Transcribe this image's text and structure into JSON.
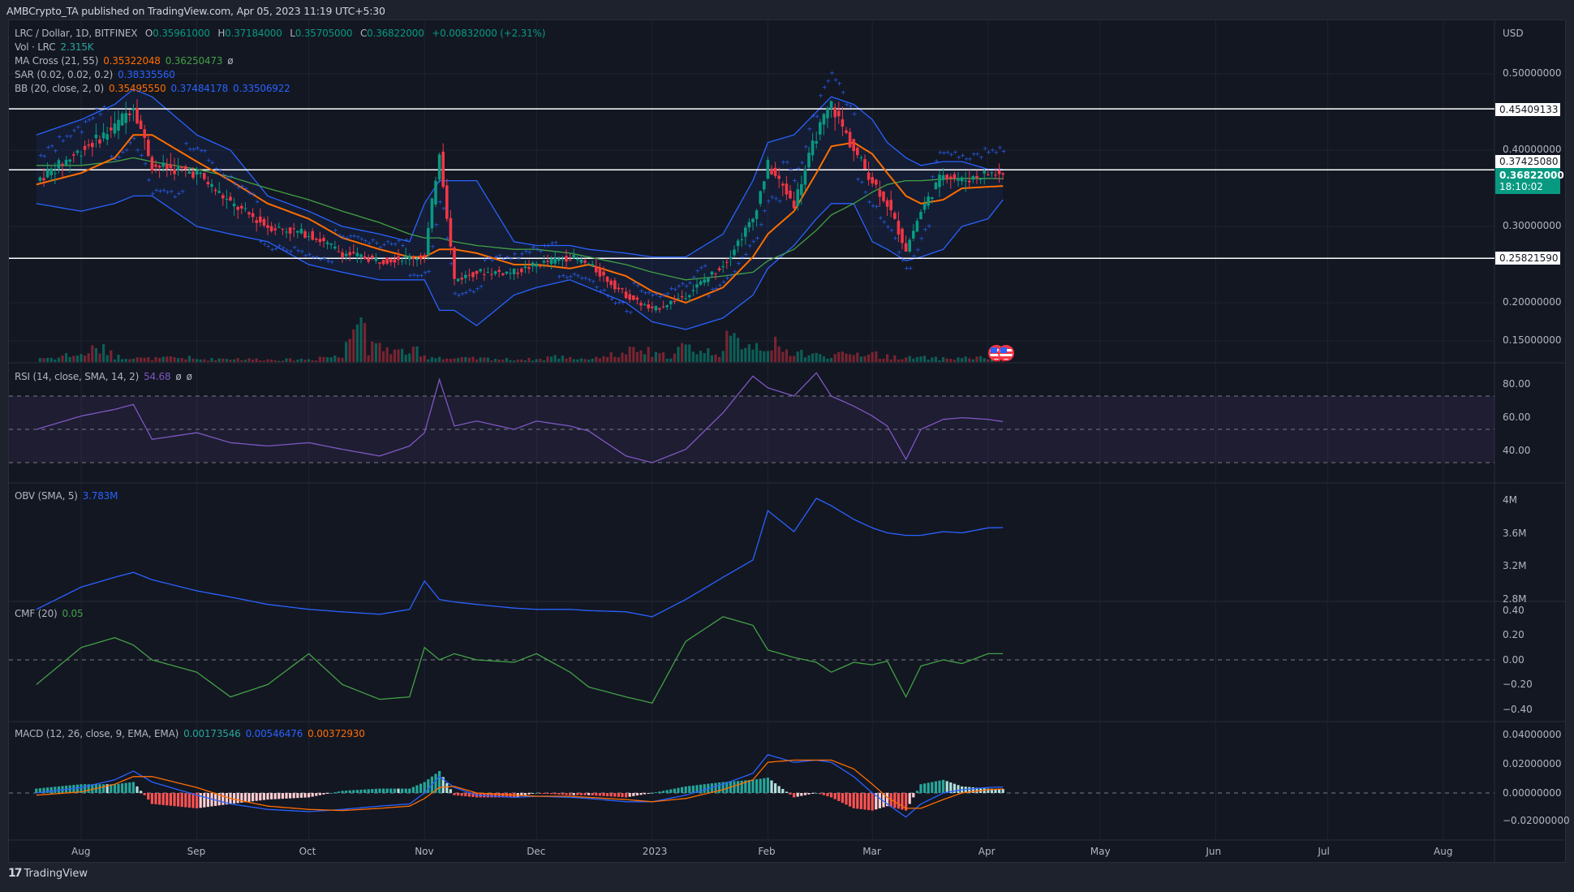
{
  "header": {
    "publish_line": "AMBCrypto_TA published on TradingView.com, Apr 05, 2023 11:19 UTC+5:30"
  },
  "legend": {
    "symbol": "LRC / Dollar, 1D, BITFINEX",
    "o_label": "O",
    "o": "0.35961000",
    "h_label": "H",
    "h": "0.37184000",
    "l_label": "L",
    "l": "0.35705000",
    "c_label": "C",
    "c": "0.36822000",
    "change": "+0.00832000 (+2.31%)",
    "vol_title": "Vol · LRC",
    "vol": "2.315K",
    "ma_title": "MA Cross (21, 55)",
    "ma_fast": "0.35322048",
    "ma_slow": "0.36250473",
    "ma_extra": "ø",
    "sar_title": "SAR (0.02, 0.02, 0.2)",
    "sar": "0.38335560",
    "bb_title": "BB (20, close, 2, 0)",
    "bb_basis": "0.35495550",
    "bb_upper": "0.37484178",
    "bb_lower": "0.33506922",
    "rsi_title": "RSI (14, close, SMA, 14, 2)",
    "rsi": "54.68",
    "rsi_extra1": "ø",
    "rsi_extra2": "ø",
    "obv_title": "OBV (SMA, 5)",
    "obv": "3.783M",
    "cmf_title": "CMF (20)",
    "cmf": "0.05",
    "macd_title": "MACD (12, 26, close, 9, EMA, EMA)",
    "macd_hist": "0.00173546",
    "macd_line": "0.00546476",
    "macd_signal": "0.00372930"
  },
  "price_axis": {
    "currency": "USD",
    "ticks": [
      "0.50000000",
      "0.40000000",
      "0.30000000",
      "0.20000000",
      "0.15000000"
    ],
    "tick_values": [
      0.5,
      0.4,
      0.3,
      0.2,
      0.15
    ],
    "horizontal_levels": [
      {
        "label": "0.45409133",
        "value": 0.45409133
      },
      {
        "label": "0.37425080",
        "value": 0.3742508
      },
      {
        "label": "0.25821590",
        "value": 0.2582159
      }
    ],
    "current_price": {
      "label": "0.36822000",
      "countdown": "18:10:02"
    }
  },
  "rsi_axis": {
    "ticks": [
      "80.00",
      "60.00",
      "40.00"
    ]
  },
  "obv_axis": {
    "ticks": [
      "4M",
      "3.6M",
      "3.2M",
      "2.8M"
    ]
  },
  "cmf_axis": {
    "ticks": [
      "0.40",
      "0.20",
      "0.00",
      "−0.20",
      "−0.40"
    ]
  },
  "macd_axis": {
    "ticks": [
      "0.04000000",
      "0.02000000",
      "0.00000000",
      "−0.02000000"
    ]
  },
  "time_axis": {
    "labels": [
      "Aug",
      "Sep",
      "Oct",
      "Nov",
      "Dec",
      "2023",
      "Feb",
      "Mar",
      "Apr",
      "May",
      "Jun",
      "Jul",
      "Aug"
    ]
  },
  "footer": {
    "brand": "TradingView",
    "logo": "17"
  },
  "colors": {
    "up": "#089981",
    "down": "#f23645",
    "bb": "#2962ff",
    "ma_fast": "#ff6d00",
    "ma_slow": "#43a047",
    "rsi": "#7e57c2",
    "obv": "#2962ff",
    "cmf": "#43a047",
    "macd": "#2962ff",
    "signal": "#ff6d00"
  },
  "chart_data": {
    "type": "line",
    "title": "LRC / Dollar, 1D, BITFINEX",
    "xlabel": "",
    "ylabel": "USD",
    "ylim": [
      0.13,
      0.52
    ],
    "grid": true,
    "x": [
      "2022-07-20",
      "2022-08-01",
      "2022-08-10",
      "2022-08-15",
      "2022-08-20",
      "2022-09-01",
      "2022-09-10",
      "2022-09-20",
      "2022-10-01",
      "2022-10-10",
      "2022-10-20",
      "2022-10-28",
      "2022-11-01",
      "2022-11-05",
      "2022-11-09",
      "2022-11-15",
      "2022-11-25",
      "2022-12-01",
      "2022-12-10",
      "2022-12-15",
      "2022-12-25",
      "2023-01-01",
      "2023-01-10",
      "2023-01-20",
      "2023-01-28",
      "2023-02-01",
      "2023-02-08",
      "2023-02-14",
      "2023-02-18",
      "2023-02-24",
      "2023-03-01",
      "2023-03-05",
      "2023-03-10",
      "2023-03-14",
      "2023-03-20",
      "2023-03-25",
      "2023-04-01",
      "2023-04-05"
    ],
    "series": [
      {
        "name": "Close",
        "values": [
          0.36,
          0.4,
          0.43,
          0.46,
          0.38,
          0.37,
          0.33,
          0.3,
          0.29,
          0.265,
          0.255,
          0.26,
          0.26,
          0.4,
          0.23,
          0.24,
          0.24,
          0.25,
          0.26,
          0.25,
          0.21,
          0.19,
          0.21,
          0.25,
          0.31,
          0.38,
          0.33,
          0.42,
          0.46,
          0.4,
          0.36,
          0.33,
          0.27,
          0.32,
          0.37,
          0.36,
          0.37,
          0.368
        ]
      },
      {
        "name": "MA21",
        "values": [
          0.355,
          0.37,
          0.39,
          0.42,
          0.42,
          0.385,
          0.36,
          0.33,
          0.31,
          0.285,
          0.27,
          0.26,
          0.26,
          0.27,
          0.27,
          0.265,
          0.25,
          0.25,
          0.245,
          0.25,
          0.235,
          0.215,
          0.2,
          0.22,
          0.26,
          0.29,
          0.32,
          0.37,
          0.405,
          0.41,
          0.395,
          0.37,
          0.34,
          0.33,
          0.335,
          0.35,
          0.352,
          0.353
        ]
      },
      {
        "name": "MA55",
        "values": [
          0.38,
          0.38,
          0.385,
          0.39,
          0.385,
          0.375,
          0.365,
          0.35,
          0.335,
          0.32,
          0.305,
          0.29,
          0.285,
          0.285,
          0.28,
          0.275,
          0.27,
          0.27,
          0.265,
          0.26,
          0.25,
          0.24,
          0.23,
          0.235,
          0.24,
          0.255,
          0.27,
          0.295,
          0.315,
          0.33,
          0.345,
          0.355,
          0.36,
          0.36,
          0.362,
          0.363,
          0.363,
          0.3625
        ]
      },
      {
        "name": "BB Upper",
        "values": [
          0.42,
          0.44,
          0.46,
          0.48,
          0.47,
          0.42,
          0.4,
          0.34,
          0.32,
          0.3,
          0.29,
          0.28,
          0.33,
          0.36,
          0.36,
          0.36,
          0.28,
          0.275,
          0.275,
          0.27,
          0.265,
          0.26,
          0.26,
          0.29,
          0.36,
          0.41,
          0.42,
          0.45,
          0.47,
          0.46,
          0.44,
          0.41,
          0.39,
          0.38,
          0.385,
          0.385,
          0.375,
          0.375
        ]
      },
      {
        "name": "BB Lower",
        "values": [
          0.33,
          0.32,
          0.33,
          0.34,
          0.34,
          0.3,
          0.29,
          0.28,
          0.25,
          0.24,
          0.23,
          0.23,
          0.23,
          0.19,
          0.19,
          0.17,
          0.21,
          0.22,
          0.23,
          0.22,
          0.2,
          0.175,
          0.165,
          0.18,
          0.21,
          0.245,
          0.275,
          0.31,
          0.33,
          0.33,
          0.28,
          0.27,
          0.255,
          0.26,
          0.27,
          0.3,
          0.31,
          0.335
        ]
      },
      {
        "name": "Volume",
        "values": [
          1.2,
          2.0,
          3.5,
          1.5,
          1.0,
          1.2,
          0.8,
          1.0,
          0.8,
          0.7,
          0.8,
          1.5,
          12,
          4,
          3,
          1.5,
          1.0,
          1.0,
          0.8,
          0.8,
          1.5,
          1.0,
          2.0,
          3.0,
          2.0,
          4.0,
          3.0,
          6.0,
          5.0,
          3.0,
          2.0,
          2.0,
          2.5,
          1.5,
          1.2,
          1.0,
          1.2,
          1.0
        ]
      },
      {
        "name": "RSI",
        "values": [
          50,
          58,
          62,
          65,
          44,
          48,
          42,
          40,
          42,
          38,
          34,
          40,
          48,
          80,
          52,
          55,
          50,
          55,
          52,
          49,
          34,
          30,
          38,
          60,
          82,
          75,
          70,
          84,
          70,
          64,
          58,
          52,
          32,
          50,
          56,
          57,
          56,
          54.68
        ]
      },
      {
        "name": "OBV (M)",
        "values": [
          3.12,
          3.3,
          3.38,
          3.42,
          3.36,
          3.27,
          3.22,
          3.16,
          3.12,
          3.1,
          3.08,
          3.12,
          3.35,
          3.2,
          3.18,
          3.16,
          3.13,
          3.12,
          3.12,
          3.11,
          3.1,
          3.06,
          3.2,
          3.38,
          3.52,
          3.92,
          3.75,
          4.02,
          3.96,
          3.85,
          3.78,
          3.74,
          3.72,
          3.72,
          3.75,
          3.74,
          3.78,
          3.783
        ]
      },
      {
        "name": "CMF",
        "values": [
          -0.2,
          0.1,
          0.18,
          0.12,
          0.0,
          -0.1,
          -0.3,
          -0.2,
          0.05,
          -0.2,
          -0.32,
          -0.3,
          0.1,
          0.0,
          0.05,
          0.0,
          -0.02,
          0.05,
          -0.1,
          -0.22,
          -0.3,
          -0.35,
          0.15,
          0.35,
          0.28,
          0.08,
          0.02,
          -0.02,
          -0.1,
          -0.02,
          -0.04,
          -0.01,
          -0.3,
          -0.05,
          0.0,
          -0.03,
          0.05,
          0.05
        ]
      },
      {
        "name": "MACD",
        "values": [
          0.0,
          0.005,
          0.012,
          0.02,
          0.01,
          -0.002,
          -0.01,
          -0.015,
          -0.017,
          -0.015,
          -0.012,
          -0.01,
          0.0,
          0.015,
          0.005,
          -0.002,
          -0.004,
          -0.003,
          -0.004,
          -0.005,
          -0.008,
          -0.008,
          -0.002,
          0.008,
          0.018,
          0.035,
          0.028,
          0.03,
          0.028,
          0.015,
          0.0,
          -0.01,
          -0.022,
          -0.01,
          0.0,
          0.003,
          0.005,
          0.0055
        ]
      },
      {
        "name": "Signal",
        "values": [
          -0.002,
          0.001,
          0.008,
          0.015,
          0.015,
          0.005,
          -0.005,
          -0.012,
          -0.015,
          -0.016,
          -0.014,
          -0.012,
          -0.005,
          0.005,
          0.006,
          0.0,
          -0.002,
          -0.003,
          -0.003,
          -0.004,
          -0.006,
          -0.008,
          -0.005,
          0.003,
          0.012,
          0.028,
          0.03,
          0.03,
          0.03,
          0.022,
          0.008,
          -0.004,
          -0.014,
          -0.014,
          -0.006,
          0.0,
          0.003,
          0.0037
        ]
      }
    ]
  }
}
